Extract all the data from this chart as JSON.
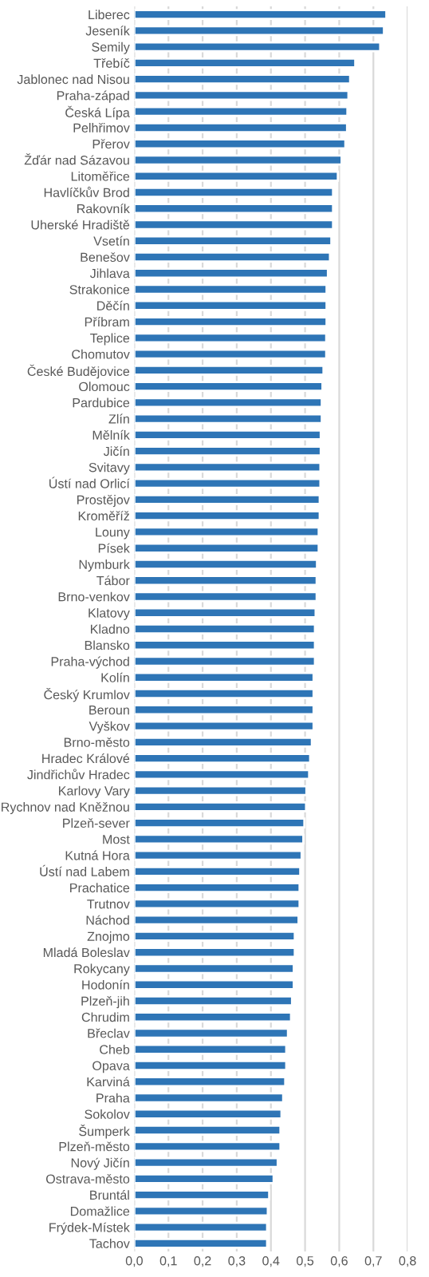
{
  "chart_data": {
    "type": "bar",
    "orientation": "horizontal",
    "color": "#2e75b6",
    "grid": "x",
    "categories": [
      "Liberec",
      "Jeseník",
      "Semily",
      "Třebíč",
      "Jablonec nad Nisou",
      "Praha-západ",
      "Česká Lípa",
      "Pelhřimov",
      "Přerov",
      "Žďár nad Sázavou",
      "Litoměřice",
      "Havlíčkův Brod",
      "Rakovník",
      "Uherské Hradiště",
      "Vsetín",
      "Benešov",
      "Jihlava",
      "Strakonice",
      "Děčín",
      "Příbram",
      "Teplice",
      "Chomutov",
      "České Budějovice",
      "Olomouc",
      "Pardubice",
      "Zlín",
      "Mělník",
      "Jičín",
      "Svitavy",
      "Ústí nad Orlicí",
      "Prostějov",
      "Kroměříž",
      "Louny",
      "Písek",
      "Nymburk",
      "Tábor",
      "Brno-venkov",
      "Klatovy",
      "Kladno",
      "Blansko",
      "Praha-východ",
      "Kolín",
      "Český Krumlov",
      "Beroun",
      "Vyškov",
      "Brno-město",
      "Hradec Králové",
      "Jindřichův Hradec",
      "Karlovy Vary",
      "Rychnov nad Kněžnou",
      "Plzeň-sever",
      "Most",
      "Kutná Hora",
      "Ústí nad Labem",
      "Prachatice",
      "Trutnov",
      "Náchod",
      "Znojmo",
      "Mladá Boleslav",
      "Rokycany",
      "Hodonín",
      "Plzeň-jih",
      "Chrudim",
      "Břeclav",
      "Cheb",
      "Opava",
      "Karviná",
      "Praha",
      "Sokolov",
      "Šumperk",
      "Plzeň-město",
      "Nový Jičín",
      "Ostrava-město",
      "Bruntál",
      "Domažlice",
      "Frýdek-Místek",
      "Tachov"
    ],
    "values": [
      0.738,
      0.731,
      0.72,
      0.647,
      0.632,
      0.627,
      0.624,
      0.623,
      0.618,
      0.607,
      0.596,
      0.582,
      0.582,
      0.582,
      0.577,
      0.573,
      0.567,
      0.563,
      0.563,
      0.563,
      0.562,
      0.562,
      0.554,
      0.551,
      0.549,
      0.549,
      0.546,
      0.546,
      0.545,
      0.545,
      0.543,
      0.543,
      0.54,
      0.54,
      0.535,
      0.534,
      0.534,
      0.531,
      0.529,
      0.529,
      0.529,
      0.525,
      0.525,
      0.525,
      0.525,
      0.52,
      0.515,
      0.512,
      0.504,
      0.503,
      0.498,
      0.495,
      0.49,
      0.486,
      0.484,
      0.484,
      0.481,
      0.47,
      0.47,
      0.467,
      0.467,
      0.462,
      0.459,
      0.45,
      0.445,
      0.445,
      0.442,
      0.436,
      0.431,
      0.428,
      0.428,
      0.42,
      0.408,
      0.395,
      0.391,
      0.389,
      0.389
    ],
    "xlim": [
      0,
      0.8
    ],
    "xticks": [
      {
        "value": 0,
        "label": "0,0"
      },
      {
        "value": 0.1,
        "label": "0,1"
      },
      {
        "value": 0.2,
        "label": "0,2"
      },
      {
        "value": 0.3,
        "label": "0,3"
      },
      {
        "value": 0.4,
        "label": "0,4"
      },
      {
        "value": 0.5,
        "label": "0,5"
      },
      {
        "value": 0.6,
        "label": "0,6"
      },
      {
        "value": 0.7,
        "label": "0,7"
      },
      {
        "value": 0.8,
        "label": "0,8"
      }
    ]
  }
}
